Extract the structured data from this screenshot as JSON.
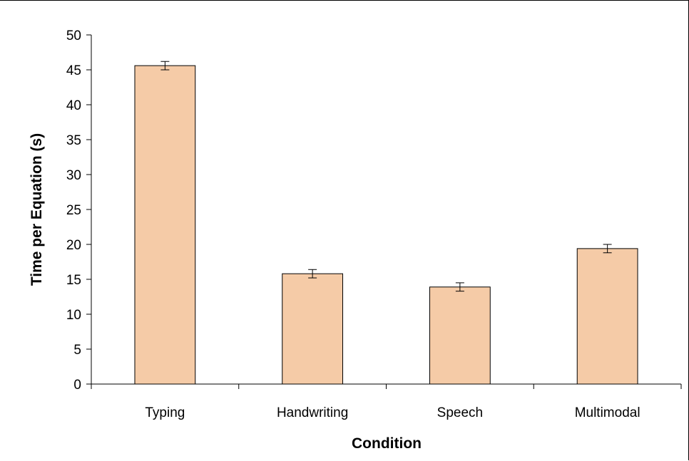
{
  "chart_data": {
    "type": "bar",
    "title": "",
    "xlabel": "Condition",
    "ylabel": "Time per Equation (s)",
    "categories": [
      "Typing",
      "Handwriting",
      "Speech",
      "Multimodal"
    ],
    "values": [
      45.6,
      15.8,
      13.9,
      19.4
    ],
    "error": [
      0.6,
      0.6,
      0.6,
      0.6
    ],
    "ylim": [
      0,
      50
    ],
    "yticks": [
      0,
      5,
      10,
      15,
      20,
      25,
      30,
      35,
      40,
      45,
      50
    ],
    "grid": false,
    "legend": "none",
    "colors": {
      "bar_fill": "#f5cba7",
      "bar_stroke": "#000000",
      "axis": "#000000"
    }
  }
}
